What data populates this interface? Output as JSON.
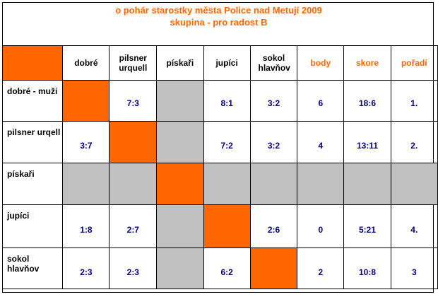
{
  "title": {
    "line1": "o pohár starostky města Police nad Metují   2009",
    "line2": "skupina - pro radost B"
  },
  "header": [
    "dobré",
    "pilsner urquell",
    "pískaři",
    "jupíci",
    "sokol hlavňov",
    "body",
    "skore",
    "pořadí"
  ],
  "rows": [
    {
      "name": "dobré - muži",
      "cells": [
        "",
        "7:3",
        "",
        "8:1",
        "3:2"
      ],
      "body": "6",
      "skore": "18:6",
      "poradi": "1."
    },
    {
      "name": "pilsner urqell",
      "cells": [
        "3:7",
        "",
        "",
        "7:2",
        "3:2"
      ],
      "body": "4",
      "skore": "13:11",
      "poradi": "2."
    },
    {
      "name": "pískaři",
      "cells": [
        "",
        "",
        "",
        "",
        ""
      ],
      "body": "",
      "skore": "",
      "poradi": ""
    },
    {
      "name": "jupíci",
      "cells": [
        "1:8",
        "2:7",
        "",
        "",
        "2:6"
      ],
      "body": "0",
      "skore": "5:21",
      "poradi": "4."
    },
    {
      "name": "sokol hlavňov",
      "cells": [
        "2:3",
        "2:3",
        "",
        "6:2",
        ""
      ],
      "body": "2",
      "skore": "10:8",
      "poradi": "3"
    }
  ],
  "colors": {
    "accent": "#ff6600",
    "gray": "#c0c0c0",
    "value": "#000080"
  }
}
